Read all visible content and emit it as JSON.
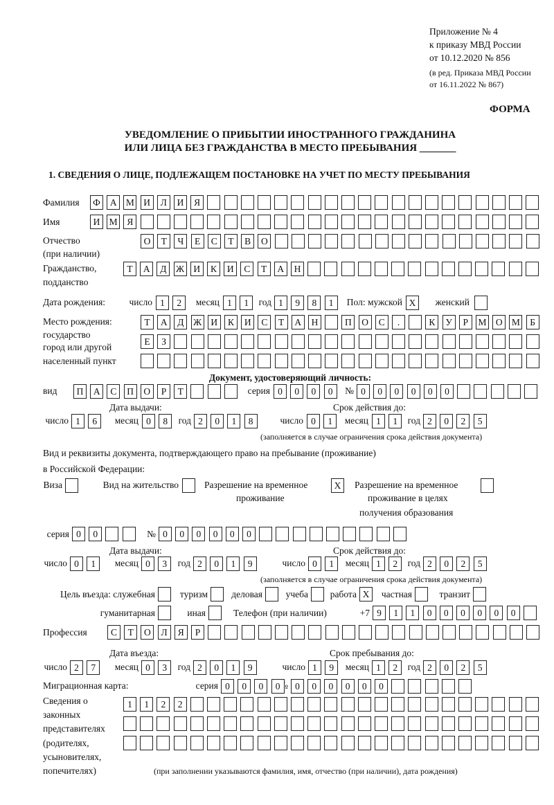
{
  "header": {
    "line1": "Приложение № 4",
    "line2": "к приказу МВД России",
    "line3": "от 10.12.2020 № 856",
    "line4": "(в ред. Приказа МВД России",
    "line5": "от 16.11.2022 № 867)",
    "forma": "ФОРМА"
  },
  "title": {
    "line1": "УВЕДОМЛЕНИЕ О ПРИБЫТИИ ИНОСТРАННОГО ГРАЖДАНИНА",
    "line2": "ИЛИ ЛИЦА БЕЗ ГРАЖДАНСТВА В МЕСТО ПРЕБЫВАНИЯ _______"
  },
  "section1": {
    "heading": "1. СВЕДЕНИЯ О ЛИЦЕ, ПОДЛЕЖАЩЕМ ПОСТАНОВКЕ НА УЧЕТ ПО МЕСТУ ПРЕБЫВАНИЯ",
    "labels": {
      "surname": "Фамилия",
      "name": "Имя",
      "patronymic1": "Отчество",
      "patronymic2": "(при наличии)",
      "citizenship1": "Гражданство,",
      "citizenship2": "подданство",
      "birth_date": "Дата рождения:",
      "day": "число",
      "month": "месяц",
      "year": "год",
      "sex": "Пол: мужской",
      "female": "женский",
      "birthplace1": "Место рождения:",
      "birthplace2": "государство",
      "birthplace3": "город или другой",
      "birthplace4": "населенный пункт",
      "id_doc": "Документ, удостоверяющий личность:",
      "kind": "вид",
      "series": "серия",
      "number": "№",
      "issue_date": "Дата выдачи:",
      "valid_until": "Срок действия до:",
      "valid_note": "(заполняется в случае ограничения срока действия документа)",
      "stay_doc1": "Вид и реквизиты документа, подтверждающего право на пребывание (проживание)",
      "stay_doc2": "в Российской Федерации:",
      "visa": "Виза",
      "residence": "Вид на жительство",
      "trp1": "Разрешение на временное",
      "trp2": "проживание",
      "trpe1": "Разрешение на временное",
      "trpe2": "проживание в целях",
      "trpe3": "получения образования",
      "purpose": "Цель въезда: служебная",
      "tourism": "туризм",
      "business": "деловая",
      "study": "учеба",
      "work": "работа",
      "private": "частная",
      "transit": "транзит",
      "humanitarian": "гуманитарная",
      "other": "иная",
      "phone": "Телефон (при наличии)",
      "phone_prefix": "+7",
      "profession": "Профессия",
      "entry_date": "Дата въезда:",
      "stay_until": "Срок пребывания до:",
      "migration_card": "Миграционная карта:",
      "legal1": "Сведения о",
      "legal2": "законных",
      "legal3": "представителях",
      "legal4": "(родителях,",
      "legal5": "усыновителях,",
      "legal6": "попечителях)",
      "legal_note": "(при заполнении указываются фамилия, имя, отчество (при наличии), дата рождения)"
    },
    "values": {
      "surname": "ФАМИЛИЯ",
      "name": "ИМЯ",
      "patronymic": "ОТЧЕСТВО",
      "citizenship": "ТАДЖИКИСТАН",
      "birth_day": "12",
      "birth_month": "11",
      "birth_year": "1981",
      "sex_male": "X",
      "sex_female": "",
      "birthplace_row1": "ТАДЖИКИСТАН ПОС. КУРМОМБ",
      "birthplace_row2": "ЕЗ",
      "birthplace_row3": "",
      "doc_kind": "ПАСПОРТ",
      "doc_series": "0000",
      "doc_number": "000000",
      "doc_issue_day": "16",
      "doc_issue_month": "08",
      "doc_issue_year": "2018",
      "doc_valid_day": "01",
      "doc_valid_month": "11",
      "doc_valid_year": "2025",
      "visa": "",
      "residence": "",
      "trp": "X",
      "trpe": "",
      "stay_series": "00",
      "stay_number": "000000",
      "stay_issue_day": "01",
      "stay_issue_month": "03",
      "stay_issue_year": "2019",
      "stay_valid_day": "01",
      "stay_valid_month": "12",
      "stay_valid_year": "2025",
      "purpose_official": "",
      "purpose_tourism": "",
      "purpose_business": "",
      "purpose_study": "",
      "purpose_work": "X",
      "purpose_private": "",
      "purpose_transit": "",
      "purpose_humanitarian": "",
      "purpose_other": "",
      "phone": "911000000",
      "profession": "СТОЛЯР",
      "entry_day": "27",
      "entry_month": "03",
      "entry_year": "2019",
      "stay_until_day": "19",
      "stay_until_month": "12",
      "stay_until_year": "2025",
      "mc_series": "0000",
      "mc_number": "000000",
      "legal_row1": "1122",
      "legal_row2": "",
      "legal_row3": ""
    }
  }
}
